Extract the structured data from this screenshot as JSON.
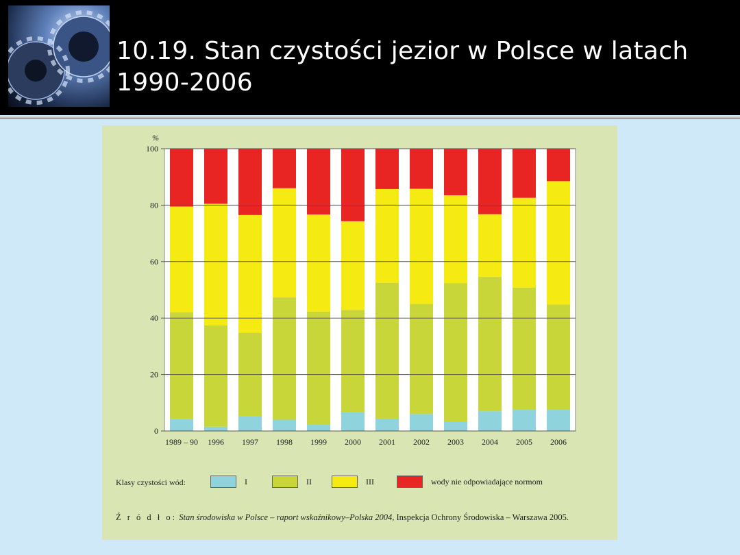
{
  "header": {
    "title": "10.19. Stan czystości jezior w Polsce w latach 1990-2006",
    "image_icon": "gears-icon"
  },
  "chart_data": {
    "type": "bar",
    "stacked": true,
    "ylabel": "%",
    "ylim": [
      0,
      100
    ],
    "yticks": [
      "0",
      "20",
      "40",
      "60",
      "80",
      "100"
    ],
    "grid": true,
    "categories": [
      "1989 – 90",
      "1996",
      "1997",
      "1998",
      "1999",
      "2000",
      "2001",
      "2002",
      "2003",
      "2004",
      "2005",
      "2006"
    ],
    "series": [
      {
        "name": "I",
        "color": "#8fd3dc",
        "values": [
          4.2,
          1.5,
          5.3,
          4.0,
          2.2,
          6.6,
          4.4,
          6.0,
          3.4,
          7.0,
          7.5,
          7.5
        ]
      },
      {
        "name": "II",
        "color": "#c8d63a",
        "values": [
          37.8,
          35.9,
          29.5,
          43.3,
          40.1,
          36.3,
          48.1,
          39.0,
          49.0,
          47.6,
          43.3,
          37.3
        ]
      },
      {
        "name": "III",
        "color": "#f5ea12",
        "values": [
          37.5,
          43.1,
          41.7,
          38.7,
          34.4,
          31.4,
          33.2,
          40.8,
          31.1,
          22.2,
          31.8,
          43.7
        ]
      },
      {
        "name": "wody nie odpowiadające normom",
        "color": "#e82522",
        "values": [
          20.5,
          19.5,
          23.5,
          14.0,
          23.3,
          25.7,
          14.3,
          14.2,
          16.5,
          23.2,
          17.4,
          11.5
        ]
      }
    ],
    "legend_title": "Klasy czystości wód:"
  },
  "source": {
    "prefix": "Ź r ó d ł o:",
    "italic": "Stan środowiska w Polsce – raport wskaźnikowy–Polska 2004,",
    "rest": " Inspekcja Ochrony Środowiska – Warszawa 2005."
  }
}
